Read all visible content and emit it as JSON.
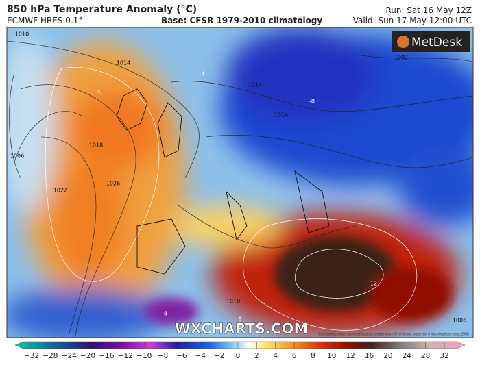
{
  "header": {
    "title": "850 hPa Temperature Anomaly (°C)",
    "model": "ECMWF HRES 0.1°",
    "base": "Base: CFSR 1979-2010 climatology",
    "run": "Run: Sat 16 May 12Z",
    "valid": "Valid: Sun 17 May 12:00 UTC"
  },
  "logo": "MetDesk",
  "watermark": "WXCHARTS.COM",
  "copyright": "(C) OpenStreetMap contributors, Contains modified Copernicus Atmosphere Monitoring Service information. European Centre for Medium-Range Weather Forecasts (ECMWF)",
  "map_labels": {
    "isobars": [
      "1010",
      "1014",
      "1018",
      "1022",
      "1026",
      "1006",
      "1014",
      "1002",
      "1014",
      "1010",
      "1006"
    ],
    "anomalies": [
      "-8",
      "-8",
      "12",
      "4",
      "4",
      "8"
    ]
  },
  "colorbar": {
    "ticks": [
      "−32",
      "−28",
      "−24",
      "−20",
      "−16",
      "−12",
      "−10",
      "−8",
      "−6",
      "−4",
      "−2",
      "0",
      "2",
      "4",
      "6",
      "8",
      "10",
      "12",
      "16",
      "20",
      "24",
      "28",
      "32"
    ]
  }
}
